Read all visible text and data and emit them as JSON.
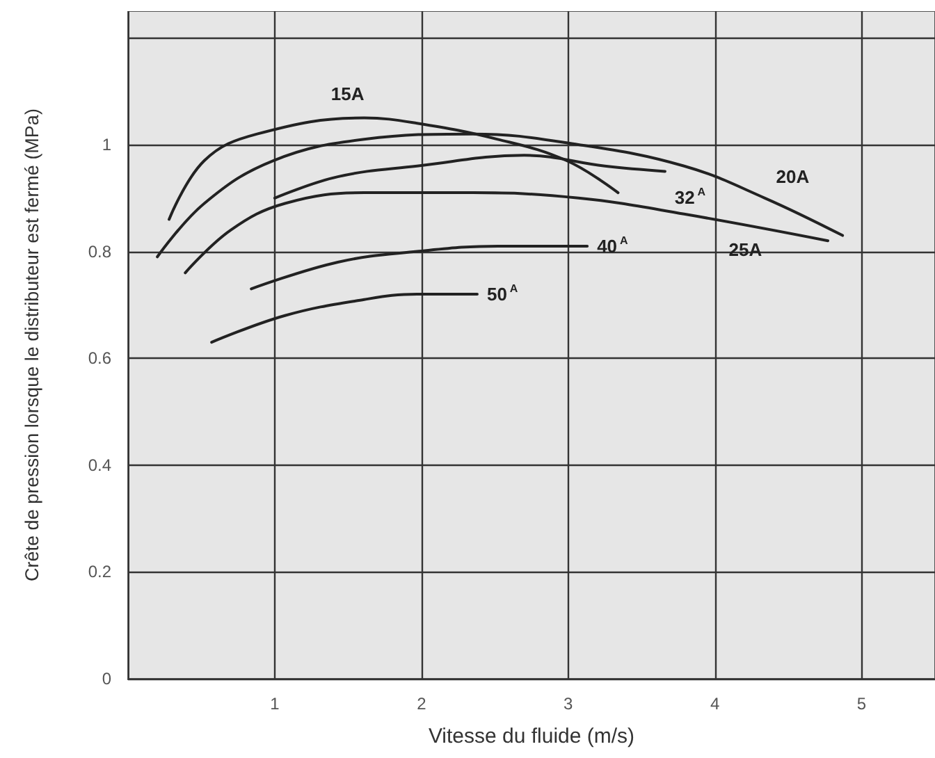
{
  "chart_data": {
    "type": "line",
    "xlabel": "Vitesse du fluide (m/s)",
    "ylabel": "Crête de pression lorsque le distributeur est fermé (MPa)",
    "xlim": [
      0,
      5.5
    ],
    "xticks": [
      1,
      2,
      3,
      4,
      5
    ],
    "ylim": [
      0,
      1.25
    ],
    "yticks": [
      0,
      0.2,
      0.4,
      0.6,
      0.8,
      1,
      {
        "value": 1.2,
        "label": null
      }
    ],
    "grid": true,
    "marker": "none",
    "line_style": "solid",
    "legend": false,
    "series": [
      {
        "name": "15A",
        "color": "#222222",
        "x": [
          0.28,
          0.52,
          0.88,
          1.61,
          1.97,
          2.52,
          2.99,
          3.34
        ],
        "values": [
          0.86,
          0.97,
          1.02,
          1.05,
          1.04,
          1.01,
          0.97,
          0.91
        ]
      },
      {
        "name": "20A",
        "color": "#222222",
        "x": [
          0.2,
          0.52,
          0.99,
          1.61,
          2.35,
          3.07,
          3.79,
          4.34,
          4.87
        ],
        "values": [
          0.79,
          0.89,
          0.97,
          1.01,
          1.02,
          1.0,
          0.96,
          0.9,
          0.83
        ]
      },
      {
        "name": "32$^{A}$",
        "color": "#222222",
        "x": [
          1.0,
          1.43,
          1.97,
          2.7,
          3.25,
          3.66
        ],
        "values": [
          0.9,
          0.94,
          0.96,
          0.98,
          0.96,
          0.95
        ]
      },
      {
        "name": "25A",
        "color": "#222222",
        "x": [
          0.39,
          0.7,
          1.07,
          1.61,
          2.35,
          3.07,
          3.79,
          4.77
        ],
        "values": [
          0.76,
          0.84,
          0.89,
          0.91,
          0.91,
          0.9,
          0.87,
          0.82
        ]
      },
      {
        "name": "40$^{A}$",
        "color": "#222222",
        "x": [
          0.84,
          1.43,
          1.97,
          2.52,
          3.13
        ],
        "values": [
          0.73,
          0.78,
          0.8,
          0.81,
          0.81
        ]
      },
      {
        "name": "50$^{A}$",
        "color": "#222222",
        "x": [
          0.57,
          1.07,
          1.61,
          1.97,
          2.38
        ],
        "values": [
          0.63,
          0.68,
          0.71,
          0.72,
          0.72
        ]
      }
    ]
  }
}
